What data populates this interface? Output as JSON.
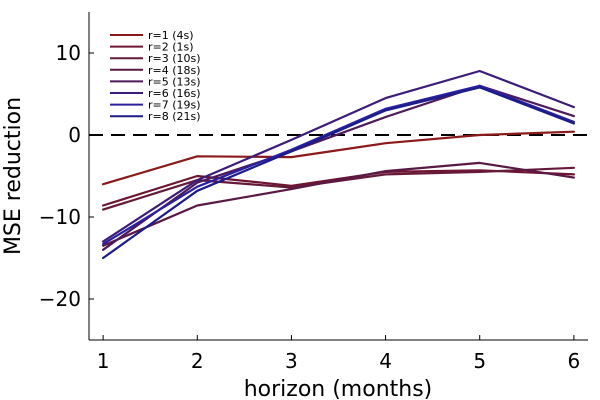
{
  "chart_data": {
    "type": "line",
    "title": "",
    "xlabel": "horizon (months)",
    "ylabel": "MSE reduction",
    "x": [
      1,
      2,
      3,
      4,
      5,
      6
    ],
    "xlim": [
      0.85,
      6.15
    ],
    "ylim": [
      -25,
      15
    ],
    "xticks": [
      1,
      2,
      3,
      4,
      5,
      6
    ],
    "yticks": [
      -20,
      -10,
      0,
      10
    ],
    "ytick_labels": [
      "−20",
      "−10",
      "0",
      "10"
    ],
    "reference_line": {
      "y": 0,
      "style": "dashed",
      "color": "#000000"
    },
    "grid": false,
    "legend_position": "top-left",
    "series": [
      {
        "name": "r=1 (4s)",
        "color": "#8b1a1a",
        "values": [
          -6.0,
          -2.6,
          -2.7,
          -1.0,
          0.0,
          0.4
        ]
      },
      {
        "name": "r=2 (1s)",
        "color": "#6e1530",
        "values": [
          -8.6,
          -5.0,
          -6.2,
          -4.5,
          -4.3,
          -4.8
        ]
      },
      {
        "name": "r=3 (10s)",
        "color": "#661a3a",
        "values": [
          -9.1,
          -5.5,
          -6.4,
          -4.8,
          -4.5,
          -4.0
        ]
      },
      {
        "name": "r=4 (18s)",
        "color": "#5a1845",
        "values": [
          -13.5,
          -8.6,
          -6.6,
          -4.4,
          -3.4,
          -5.2
        ]
      },
      {
        "name": "r=5 (13s)",
        "color": "#4d1a5a",
        "values": [
          -14.0,
          -5.8,
          -2.0,
          2.2,
          6.0,
          2.3
        ]
      },
      {
        "name": "r=6 (16s)",
        "color": "#3c1c7a",
        "values": [
          -13.0,
          -5.5,
          -0.6,
          4.5,
          7.8,
          3.4
        ]
      },
      {
        "name": "r=7 (19s)",
        "color": "#2a20a0",
        "values": [
          -13.3,
          -6.3,
          -1.8,
          3.2,
          6.0,
          1.6
        ]
      },
      {
        "name": "r=8 (21s)",
        "color": "#1c1c8a",
        "values": [
          -15.0,
          -6.8,
          -2.0,
          3.0,
          5.8,
          1.4
        ]
      }
    ]
  }
}
